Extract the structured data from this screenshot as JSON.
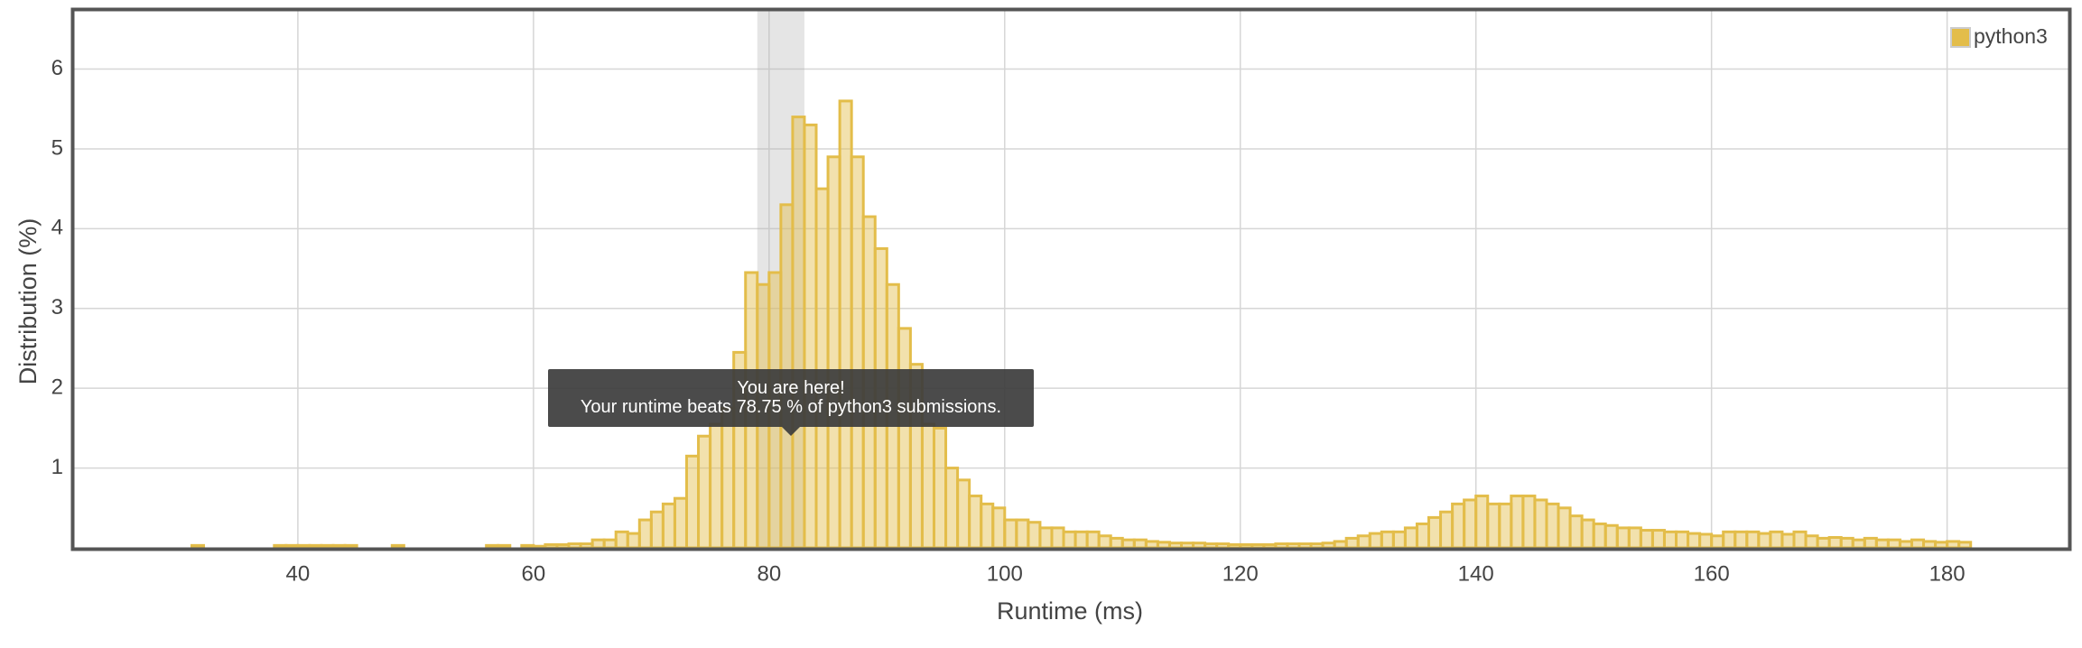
{
  "chart_data": {
    "type": "histogram",
    "x_label": "Runtime (ms)",
    "y_label": "Distribution (%)",
    "bins": [
      31,
      32,
      33,
      34,
      35,
      36,
      37,
      38,
      39,
      40,
      41,
      42,
      43,
      44,
      45,
      46,
      47,
      48,
      49,
      50,
      51,
      52,
      53,
      54,
      55,
      56,
      57,
      58,
      59,
      60,
      61,
      62,
      63,
      64,
      65,
      66,
      67,
      68,
      69,
      70,
      71,
      72,
      73,
      74,
      75,
      76,
      77,
      78,
      79,
      80,
      81,
      82,
      83,
      84,
      85,
      86,
      87,
      88,
      89,
      90,
      91,
      92,
      93,
      94,
      95,
      96,
      97,
      98,
      99,
      100,
      101,
      102,
      103,
      104,
      105,
      106,
      107,
      108,
      109,
      110,
      111,
      112,
      113,
      114,
      115,
      116,
      117,
      118,
      119,
      120,
      121,
      122,
      123,
      124,
      125,
      126,
      127,
      128,
      129,
      130,
      131,
      132,
      133,
      134,
      135,
      136,
      137,
      138,
      139,
      140,
      141,
      142,
      143,
      144,
      145,
      146,
      147,
      148,
      149,
      150,
      151,
      152,
      153,
      154,
      155,
      156,
      157,
      158,
      159,
      160,
      161,
      162,
      163,
      164,
      165,
      166,
      167,
      168,
      169,
      170,
      171,
      172,
      173,
      174,
      175,
      176,
      177,
      178,
      179,
      180,
      181,
      182
    ],
    "series": [
      {
        "name": "python3",
        "color": "#e3bd4a",
        "values": [
          0.03,
          0,
          0,
          0,
          0,
          0,
          0,
          0.03,
          0.03,
          0.03,
          0.03,
          0.03,
          0.03,
          0.03,
          0,
          0,
          0,
          0.03,
          0,
          0,
          0,
          0,
          0,
          0,
          0,
          0.03,
          0.03,
          0,
          0.03,
          0.02,
          0.04,
          0.04,
          0.05,
          0.05,
          0.1,
          0.1,
          0.2,
          0.18,
          0.35,
          0.45,
          0.55,
          0.62,
          1.15,
          1.4,
          1.55,
          1.75,
          2.45,
          3.45,
          3.3,
          3.45,
          4.3,
          5.4,
          5.3,
          4.5,
          4.9,
          5.6,
          4.9,
          4.15,
          3.75,
          3.3,
          2.75,
          2.3,
          1.55,
          1.5,
          1.0,
          0.85,
          0.65,
          0.55,
          0.5,
          0.35,
          0.35,
          0.32,
          0.25,
          0.25,
          0.2,
          0.2,
          0.2,
          0.15,
          0.12,
          0.1,
          0.1,
          0.08,
          0.07,
          0.06,
          0.06,
          0.06,
          0.05,
          0.05,
          0.04,
          0.04,
          0.04,
          0.04,
          0.05,
          0.05,
          0.05,
          0.05,
          0.06,
          0.08,
          0.12,
          0.15,
          0.18,
          0.2,
          0.2,
          0.25,
          0.3,
          0.38,
          0.45,
          0.55,
          0.6,
          0.65,
          0.55,
          0.55,
          0.65,
          0.65,
          0.6,
          0.55,
          0.5,
          0.4,
          0.35,
          0.3,
          0.28,
          0.25,
          0.25,
          0.22,
          0.22,
          0.2,
          0.2,
          0.18,
          0.17,
          0.15,
          0.2,
          0.2,
          0.2,
          0.18,
          0.2,
          0.17,
          0.2,
          0.15,
          0.12,
          0.13,
          0.12,
          0.1,
          0.12,
          0.1,
          0.1,
          0.08,
          0.1,
          0.08,
          0.07,
          0.08,
          0.07
        ]
      }
    ],
    "xlim": [
      21,
      190.3
    ],
    "ylim": [
      0,
      6.73
    ],
    "xticks": [
      40,
      60,
      80,
      100,
      120,
      140,
      160,
      180
    ],
    "yticks": [
      1,
      2,
      3,
      4,
      5,
      6
    ],
    "grid": true,
    "legend": "top-right",
    "highlight_range": [
      79,
      83
    ],
    "annotation": [
      "You are here!",
      "Your runtime beats 78.75 % of python3 submissions."
    ]
  }
}
